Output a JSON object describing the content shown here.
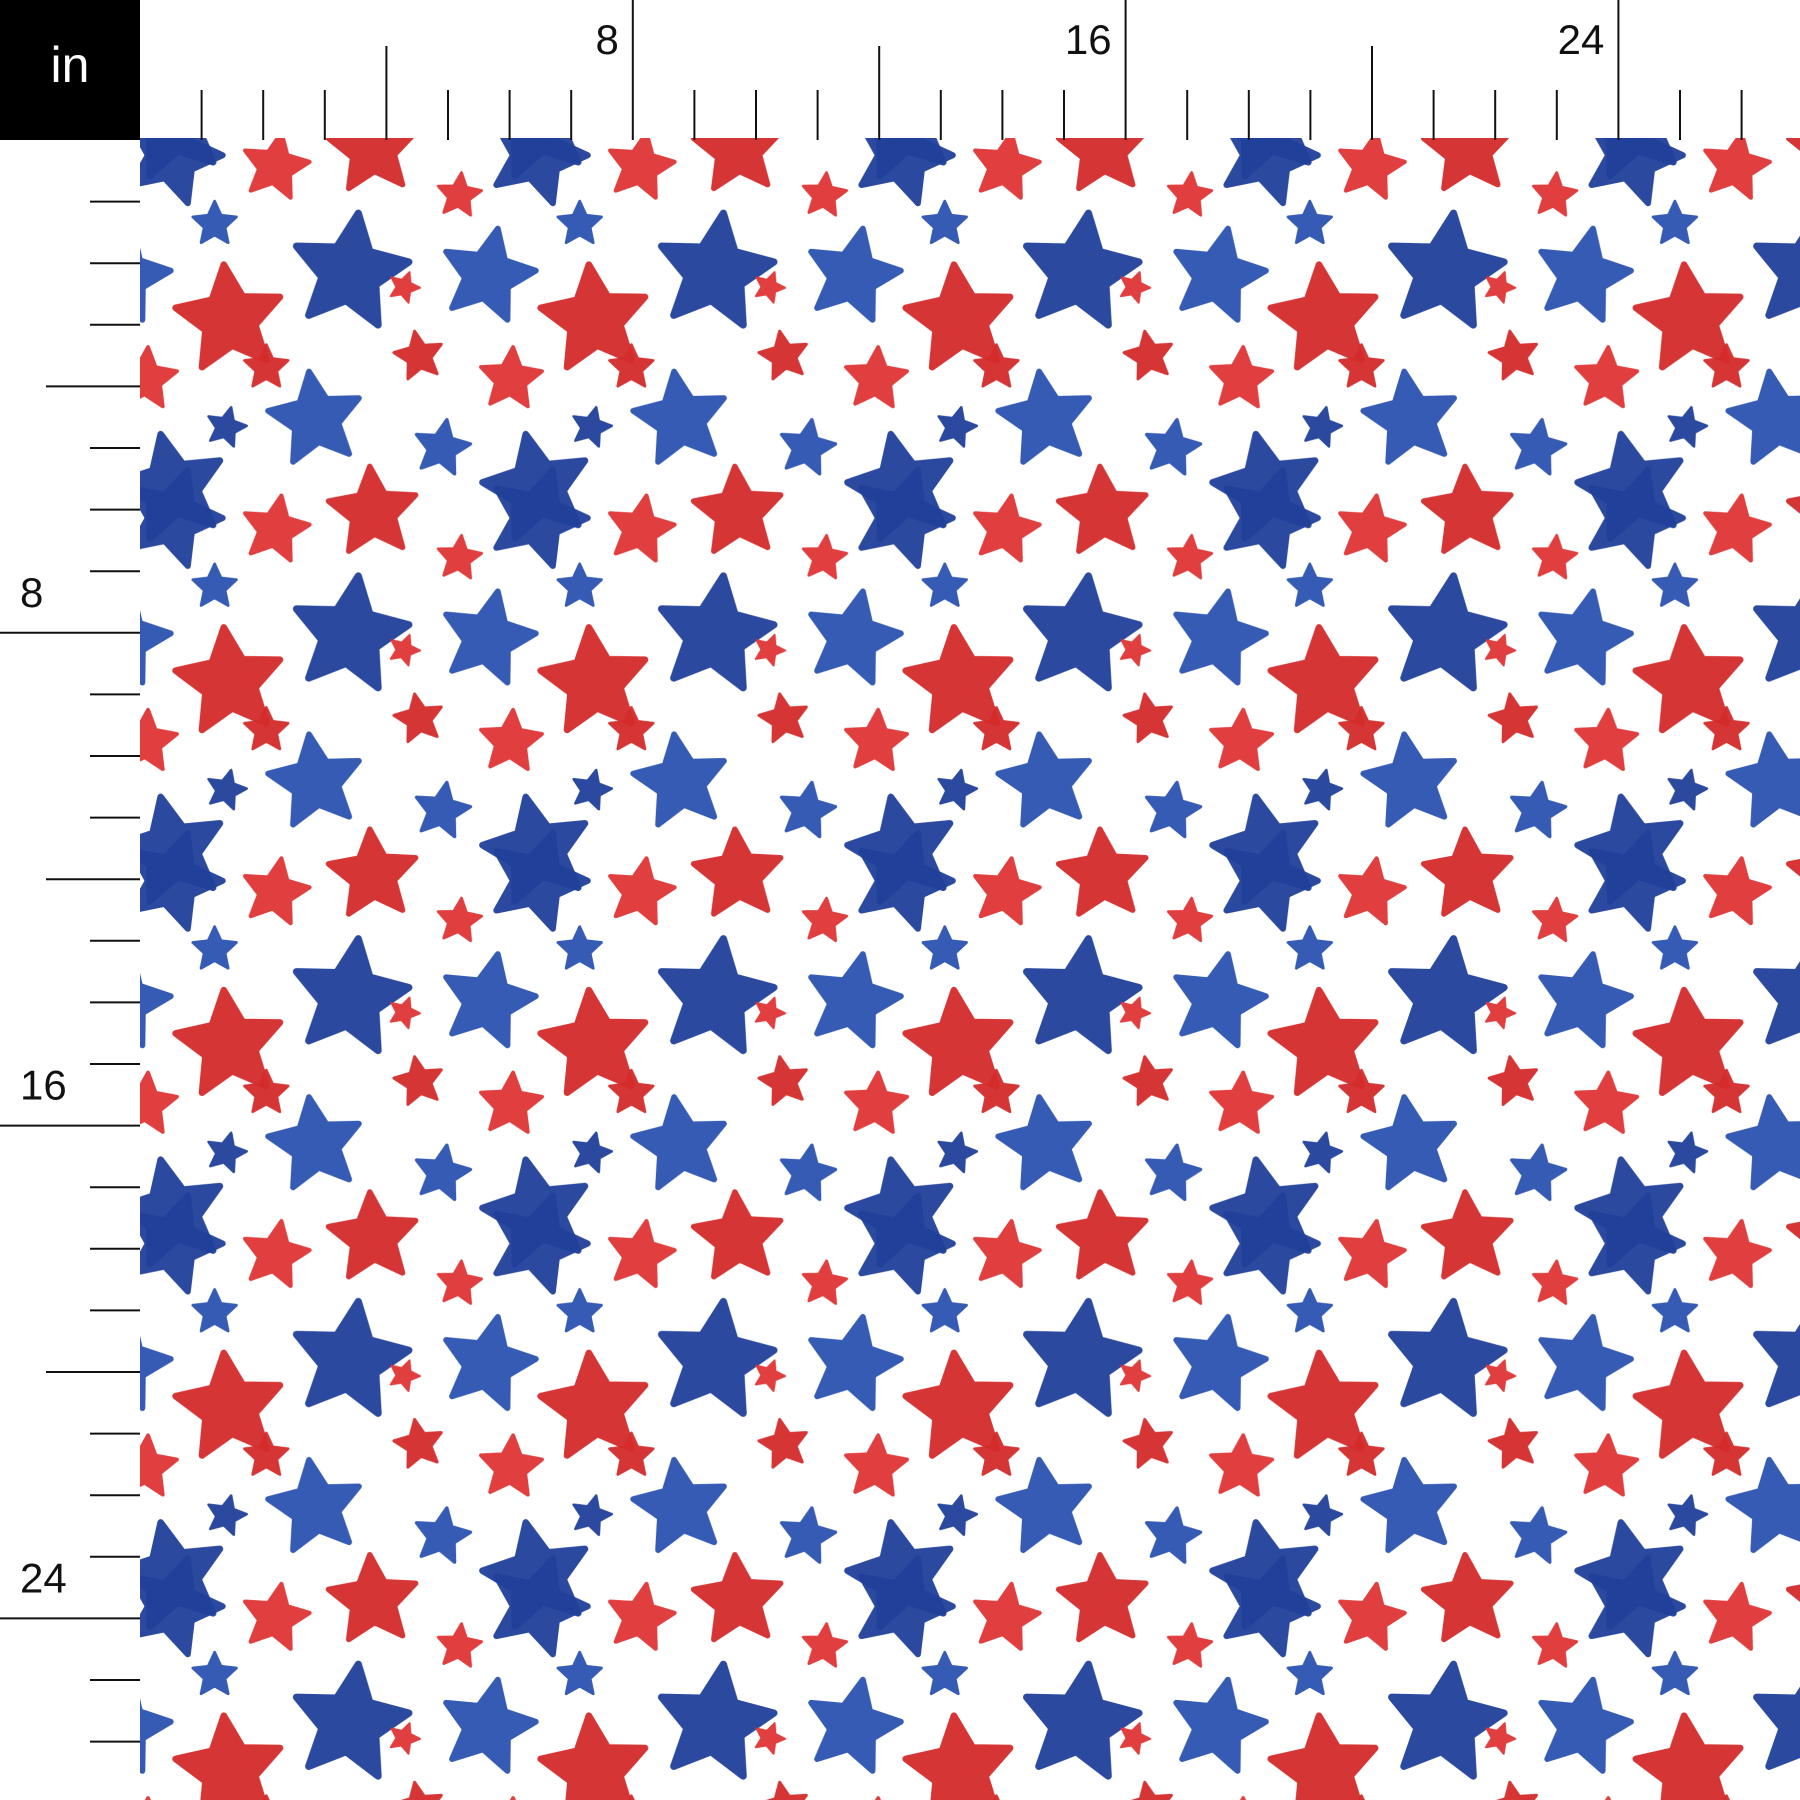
{
  "unit": "in",
  "top_ruler": {
    "labels": [
      "8",
      "16",
      "24"
    ]
  },
  "left_ruler": {
    "labels": [
      "8",
      "16",
      "24"
    ]
  }
}
